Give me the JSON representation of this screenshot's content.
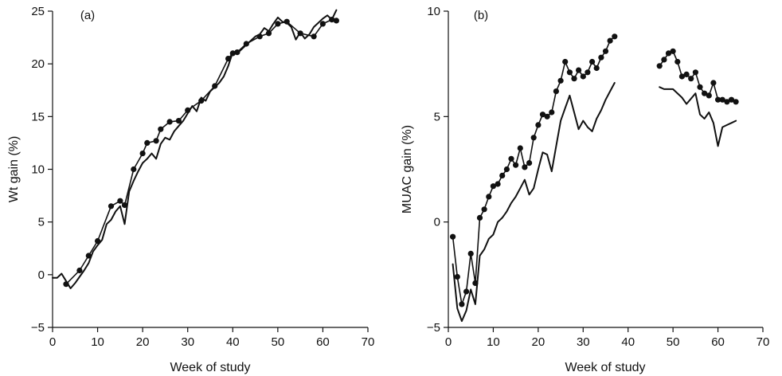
{
  "chart_data": [
    {
      "type": "line",
      "panel_label": "(a)",
      "title": "",
      "xlabel": "Week of study",
      "ylabel": "Wt gain (%)",
      "xlim": [
        0,
        70
      ],
      "ylim": [
        -5,
        25
      ],
      "xticks": [
        0,
        10,
        20,
        30,
        40,
        50,
        60,
        70
      ],
      "yticks": [
        -5,
        0,
        5,
        10,
        15,
        20,
        25
      ],
      "grid": false,
      "series": [
        {
          "style": "solid",
          "x": [
            0,
            1,
            2,
            3,
            4,
            5,
            6,
            7,
            8,
            9,
            10,
            11,
            12,
            13,
            14,
            15,
            16,
            17,
            18,
            19,
            20,
            21,
            22,
            23,
            24,
            25,
            26,
            27,
            28,
            29,
            30,
            31,
            32,
            33,
            34,
            35,
            36,
            37,
            38,
            39,
            40,
            41,
            42,
            43,
            44,
            45,
            46,
            47,
            48,
            49,
            50,
            51,
            52,
            53,
            54,
            55,
            56,
            57,
            58,
            59,
            60,
            61,
            62,
            63
          ],
          "y": [
            -0.3,
            -0.3,
            0.1,
            -0.6,
            -1.3,
            -0.8,
            -0.2,
            0.4,
            1.1,
            2.2,
            2.8,
            3.3,
            4.8,
            5.2,
            6.0,
            6.5,
            4.8,
            7.9,
            8.9,
            9.8,
            10.6,
            11.0,
            11.5,
            11.0,
            12.4,
            13.0,
            12.8,
            13.6,
            14.1,
            14.6,
            15.3,
            16.0,
            15.5,
            16.8,
            16.5,
            17.4,
            17.8,
            18.2,
            18.8,
            19.8,
            21.1,
            21.0,
            21.4,
            21.8,
            22.2,
            22.6,
            22.8,
            23.4,
            23.1,
            23.8,
            24.4,
            24.0,
            23.9,
            23.5,
            22.3,
            23.0,
            22.4,
            22.8,
            23.5,
            23.9,
            24.3,
            24.6,
            24.2,
            25.1
          ]
        },
        {
          "style": "dotted",
          "x": [
            3,
            6,
            8,
            10,
            13,
            15,
            16,
            18,
            20,
            21,
            23,
            24,
            26,
            28,
            30,
            33,
            36,
            39,
            40,
            41,
            43,
            46,
            48,
            50,
            52,
            55,
            58,
            60,
            62,
            63
          ],
          "y": [
            -0.9,
            0.4,
            1.8,
            3.2,
            6.5,
            7.0,
            6.6,
            10.0,
            11.5,
            12.5,
            12.7,
            13.8,
            14.5,
            14.6,
            15.6,
            16.5,
            17.9,
            20.5,
            21.0,
            21.1,
            21.9,
            22.6,
            22.9,
            23.8,
            24.0,
            22.9,
            22.6,
            23.8,
            24.2,
            24.1
          ]
        }
      ]
    },
    {
      "type": "line",
      "panel_label": "(b)",
      "title": "",
      "xlabel": "Week of study",
      "ylabel": "MUAC gain (%)",
      "xlim": [
        0,
        70
      ],
      "ylim": [
        -5,
        10
      ],
      "xticks": [
        0,
        10,
        20,
        30,
        40,
        50,
        60,
        70
      ],
      "yticks": [
        -5,
        0,
        5,
        10
      ],
      "grid": false,
      "series": [
        {
          "style": "solid",
          "segments": [
            {
              "x": [
                1,
                2,
                3,
                4,
                5,
                6,
                7,
                8,
                9,
                10,
                11,
                12,
                13,
                14,
                15,
                16,
                17,
                18,
                19,
                20,
                21,
                22,
                23,
                24,
                25,
                26,
                27,
                28,
                29,
                30,
                31,
                32,
                33,
                34,
                35,
                36,
                37
              ],
              "y": [
                -2.0,
                -4.1,
                -4.7,
                -4.2,
                -3.2,
                -3.9,
                -1.6,
                -1.3,
                -0.8,
                -0.6,
                0.0,
                0.2,
                0.5,
                0.9,
                1.2,
                1.6,
                2.0,
                1.3,
                1.6,
                2.5,
                3.3,
                3.2,
                2.4,
                3.6,
                4.8,
                5.4,
                6.0,
                5.2,
                4.4,
                4.8,
                4.5,
                4.3,
                4.9,
                5.3,
                5.8,
                6.2,
                6.6
              ]
            },
            {
              "x": [
                47,
                48,
                50,
                52,
                53,
                55,
                56,
                57,
                58,
                59,
                60,
                61,
                62,
                63,
                64
              ],
              "y": [
                6.4,
                6.3,
                6.3,
                5.9,
                5.6,
                6.1,
                5.1,
                4.9,
                5.2,
                4.7,
                3.6,
                4.5,
                4.6,
                4.7,
                4.8
              ]
            }
          ]
        },
        {
          "style": "dotted",
          "segments": [
            {
              "x": [
                1,
                2,
                3,
                4,
                5,
                6,
                7,
                8,
                9,
                10,
                11,
                12,
                13,
                14,
                15,
                16,
                17,
                18,
                19,
                20,
                21,
                22,
                23,
                24,
                25,
                26,
                27,
                28,
                29,
                30,
                31,
                32,
                33,
                34,
                35,
                36,
                37
              ],
              "y": [
                -0.7,
                -2.6,
                -3.9,
                -3.3,
                -1.5,
                -2.9,
                0.2,
                0.6,
                1.2,
                1.7,
                1.8,
                2.2,
                2.5,
                3.0,
                2.7,
                3.5,
                2.6,
                2.8,
                4.0,
                4.6,
                5.1,
                5.0,
                5.2,
                6.2,
                6.7,
                7.6,
                7.1,
                6.8,
                7.2,
                6.9,
                7.1,
                7.6,
                7.3,
                7.8,
                8.1,
                8.6,
                8.8
              ]
            },
            {
              "x": [
                47,
                48,
                49,
                50,
                51,
                52,
                53,
                54,
                55,
                56,
                57,
                58,
                59,
                60,
                61,
                62,
                63,
                64
              ],
              "y": [
                7.4,
                7.7,
                8.0,
                8.1,
                7.6,
                6.9,
                7.0,
                6.8,
                7.1,
                6.4,
                6.1,
                6.0,
                6.6,
                5.8,
                5.8,
                5.7,
                5.8,
                5.7
              ]
            }
          ]
        }
      ]
    }
  ]
}
